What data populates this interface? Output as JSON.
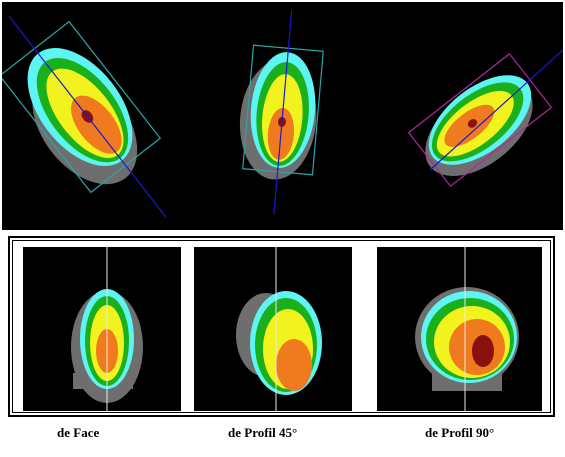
{
  "captions": [
    "de Face",
    "de Profil 45°",
    "de Profil 90°"
  ],
  "colors": {
    "background": "#000000",
    "cyan": "#5ef4f4",
    "green": "#1bb01b",
    "yellow": "#f2f21e",
    "orange": "#f07a1e",
    "dark_red": "#8b1010",
    "grey_silhouette": "#6e6e6e",
    "axis_blue": "#1a1ad0",
    "box_teal": "#2aa6a6",
    "box_magenta": "#b0289e"
  },
  "views": {
    "top": [
      "face",
      "profile-45",
      "profile-90"
    ],
    "bottom": [
      "face",
      "profile-45",
      "profile-90"
    ]
  }
}
